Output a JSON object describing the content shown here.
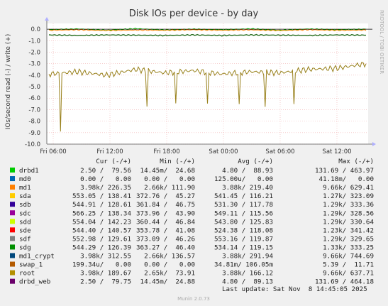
{
  "chart_data": {
    "type": "line",
    "title": "Disk IOs per device - by day",
    "ylabel": "IOs/second read (-) / write (+)",
    "side_label": "RRDTOOL / TOBI OETIKER",
    "ylim": [
      -10.0,
      0.5
    ],
    "y_ticks": [
      "0.0",
      "-1.0",
      "-2.0",
      "-3.0",
      "-4.0",
      "-5.0",
      "-6.0",
      "-7.0",
      "-8.0",
      "-9.0",
      "-10.0"
    ],
    "x_ticks": [
      "Fri 06:00",
      "Fri 12:00",
      "Fri 18:00",
      "Sat 00:00",
      "Sat 06:00",
      "Sat 12:00"
    ],
    "series": [
      {
        "name": "drbd1",
        "color": "#00cc00",
        "values": [
          -0.05,
          0.02,
          -0.1,
          0.05,
          -0.08,
          0.0,
          -0.05,
          0.03,
          -0.1,
          0.02,
          -0.06,
          0.0
        ]
      },
      {
        "name": "md1",
        "color": "#ff8000",
        "values": [
          -0.1,
          -0.05,
          -0.12,
          -0.08,
          -0.1,
          -0.05,
          -0.1,
          -0.06,
          -0.12,
          -0.05,
          -0.1,
          -0.08
        ]
      },
      {
        "name": "sdf",
        "color": "#246c1c",
        "values": [
          -0.5,
          -0.55,
          -0.5,
          -0.52,
          -0.55,
          -0.5,
          -0.55,
          -0.5,
          -0.52,
          -0.55,
          -0.5,
          -0.52
        ]
      },
      {
        "name": "root",
        "color": "#98801a",
        "values": [
          -3.9,
          -3.7,
          -4.0,
          -3.5,
          -3.8,
          -3.6,
          -3.9,
          -3.7,
          -3.8,
          -3.5,
          -3.4,
          -3.0
        ]
      }
    ]
  },
  "legend_headers": {
    "cur": "Cur (-/+)",
    "min": "Min (-/+)",
    "avg": "Avg (-/+)",
    "max": "Max (-/+)"
  },
  "legend": [
    {
      "name": "drbd1",
      "color": "#00cc00",
      "cur": "2.50 /  79.56",
      "min": "14.45m/  24.68",
      "avg": "4.80 /  88.93",
      "max": "131.69 / 463.97"
    },
    {
      "name": "md0",
      "color": "#0066b3",
      "cur": "0.00 /   0.00",
      "min": "0.00 /   0.00",
      "avg": "125.00u/   0.00",
      "max": "41.18m/   0.00"
    },
    {
      "name": "md1",
      "color": "#ff8000",
      "cur": "3.98k/ 226.35",
      "min": "2.66k/ 111.90",
      "avg": "3.88k/ 219.40",
      "max": "9.66k/ 629.41"
    },
    {
      "name": "sda",
      "color": "#ffcc00",
      "cur": "553.05 / 138.41",
      "min": "372.76 /  45.27",
      "avg": "541.45 / 116.21",
      "max": "1.27k/ 323.09"
    },
    {
      "name": "sdb",
      "color": "#330099",
      "cur": "544.91 / 128.61",
      "min": "361.84 /  46.75",
      "avg": "531.30 / 117.78",
      "max": "1.29k/ 333.36"
    },
    {
      "name": "sdc",
      "color": "#990099",
      "cur": "566.25 / 138.34",
      "min": "373.96 /  43.90",
      "avg": "549.11 / 115.56",
      "max": "1.29k/ 328.56"
    },
    {
      "name": "sdd",
      "color": "#ccff00",
      "cur": "554.04 / 142.23",
      "min": "360.44 /  46.84",
      "avg": "543.80 / 125.83",
      "max": "1.29k/ 330.64"
    },
    {
      "name": "sde",
      "color": "#ff0000",
      "cur": "544.40 / 140.57",
      "min": "353.78 /  41.08",
      "avg": "524.38 / 118.08",
      "max": "1.23k/ 341.42"
    },
    {
      "name": "sdf",
      "color": "#808080",
      "cur": "552.98 / 129.61",
      "min": "373.09 /  46.26",
      "avg": "553.16 / 119.87",
      "max": "1.29k/ 329.65"
    },
    {
      "name": "sdg",
      "color": "#008f00",
      "cur": "544.29 / 126.39",
      "min": "363.27 /  46.40",
      "avg": "534.14 / 119.15",
      "max": "1.33k/ 333.25"
    },
    {
      "name": "md1_crypt",
      "color": "#00487d",
      "cur": "3.98k/ 312.55",
      "min": "2.66k/ 136.57",
      "avg": "3.88k/ 291.94",
      "max": "9.66k/ 744.69"
    },
    {
      "name": "swap_1",
      "color": "#b35a00",
      "cur": "199.34u/   0.00",
      "min": "0.00 /   0.00",
      "avg": "34.81m/ 106.05m",
      "max": "5.39 /  11.71"
    },
    {
      "name": "root",
      "color": "#b38f00",
      "cur": "3.98k/ 189.67",
      "min": "2.65k/  73.91",
      "avg": "3.88k/ 166.12",
      "max": "9.66k/ 637.71"
    },
    {
      "name": "drbd_web",
      "color": "#6b006b",
      "cur": "2.50 /  79.75",
      "min": "14.45m/  24.88",
      "avg": "4.80 /  89.13",
      "max": "131.69 / 464.18"
    }
  ],
  "last_update": "Last update: Sat Nov  8 14:45:05 2025",
  "footer": "Munin 2.0.73"
}
